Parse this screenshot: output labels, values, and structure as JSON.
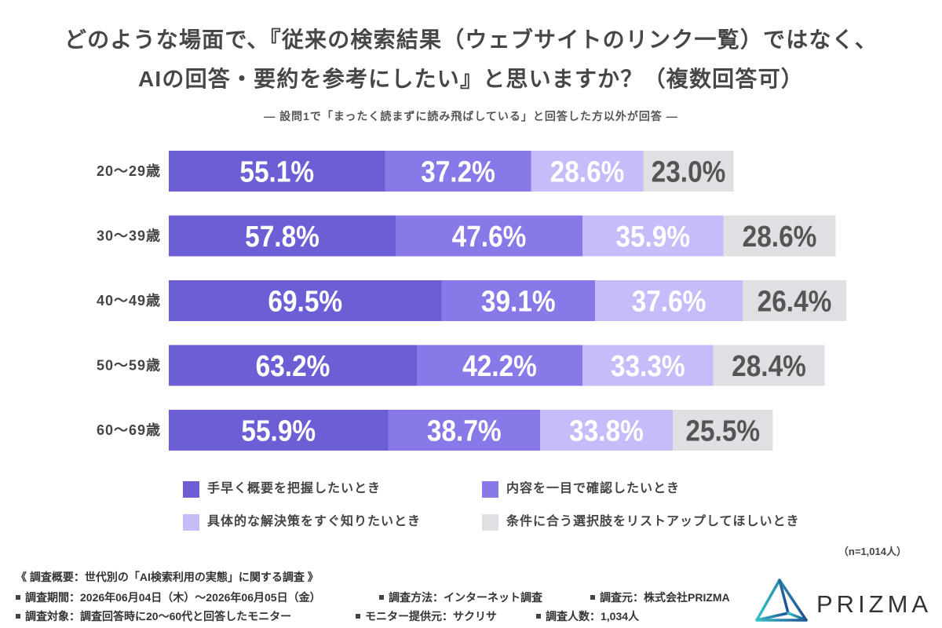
{
  "chart_data": {
    "type": "bar",
    "orientation": "horizontal",
    "stacked": true,
    "title": "どのような場面で、『従来の検索結果（ウェブサイトのリンク一覧）ではなく、\nAIの回答・要約を参考にしたい』と思いますか？（複数回答可）",
    "subtitle": "― 設問1で「まったく読まずに読み飛ばしている」と回答した方以外が回答 ―",
    "categories": [
      "20〜29歳",
      "30〜39歳",
      "40〜49歳",
      "50〜59歳",
      "60〜69歳"
    ],
    "unit": "%",
    "series": [
      {
        "name": "手早く概要を把握したいとき",
        "color": "#6c5fd6",
        "label_color": "#ffffff",
        "values": [
          55.1,
          57.8,
          69.5,
          63.2,
          55.9
        ]
      },
      {
        "name": "内容を一目で確認したいとき",
        "color": "#877ae8",
        "label_color": "#ffffff",
        "values": [
          37.2,
          47.6,
          39.1,
          42.2,
          38.7
        ]
      },
      {
        "name": "具体的な解決策をすぐ知りたいとき",
        "color": "#c6bcfa",
        "label_color": "#ffffff",
        "values": [
          28.6,
          35.9,
          37.6,
          33.3,
          33.8
        ]
      },
      {
        "name": "条件に合う選択肢をリストアップしてほしいとき",
        "color": "#e0dfe3",
        "label_color": "#555555",
        "values": [
          23.0,
          28.6,
          26.4,
          28.4,
          25.5
        ]
      }
    ],
    "data_labels": true,
    "grid": false,
    "legend_position": "bottom",
    "sample_note": "（n=1,014人）"
  },
  "survey": {
    "heading": "《 調査概要：世代別の「AI検索利用の実態」に関する調査 》",
    "items": [
      "調査期間：2026年06月04日（木）〜2026年06月05日（金）",
      "調査方法：インターネット調査",
      "調査元：株式会社PRIZMA",
      "調査対象：調査回答時に20〜60代と回答したモニター",
      "モニター提供元：サクリサ",
      "調査人数：1,034人"
    ]
  },
  "brand": {
    "name": "PRIZMA",
    "logo_icon": "prism-triangle-icon",
    "gradient_start": "#36c2c4",
    "gradient_end": "#1f4f93"
  }
}
